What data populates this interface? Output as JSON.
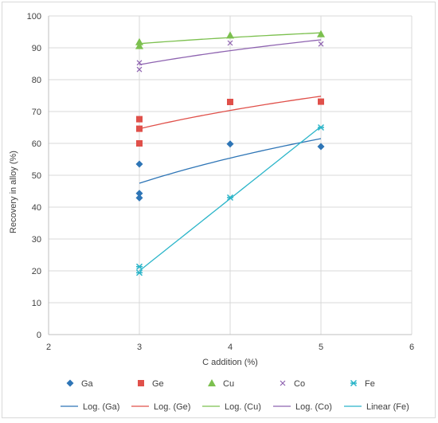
{
  "chart_data": {
    "type": "scatter",
    "xlabel": "C addition  (%)",
    "ylabel": "Recovery in alloy  (%)",
    "xlim": [
      2,
      6
    ],
    "ylim": [
      0,
      100
    ],
    "x_ticks": [
      2,
      3,
      4,
      5,
      6
    ],
    "y_ticks": [
      0,
      10,
      20,
      30,
      40,
      50,
      60,
      70,
      80,
      90,
      100
    ],
    "grid": true,
    "legend_position": "bottom",
    "series": [
      {
        "name": "Ga",
        "marker": "diamond",
        "color": "#2e75b6",
        "points": [
          [
            3,
            53.5
          ],
          [
            3,
            44.3
          ],
          [
            3,
            42.9
          ],
          [
            4,
            59.8
          ],
          [
            5,
            59.0
          ]
        ]
      },
      {
        "name": "Ge",
        "marker": "square",
        "color": "#e0504a",
        "points": [
          [
            3,
            67.6
          ],
          [
            3,
            64.6
          ],
          [
            3,
            60.0
          ],
          [
            4,
            73.0
          ],
          [
            5,
            73.1
          ]
        ]
      },
      {
        "name": "Cu",
        "marker": "triangle",
        "color": "#7cc04f",
        "points": [
          [
            3,
            91.8
          ],
          [
            3,
            90.6
          ],
          [
            4,
            93.9
          ],
          [
            5,
            94.3
          ]
        ]
      },
      {
        "name": "Co",
        "marker": "x",
        "color": "#8e63b0",
        "points": [
          [
            3,
            85.3
          ],
          [
            3,
            83.2
          ],
          [
            4,
            91.5
          ],
          [
            5,
            91.2
          ]
        ]
      },
      {
        "name": "Fe",
        "marker": "star",
        "color": "#2bb5c9",
        "points": [
          [
            3,
            21.3
          ],
          [
            3,
            19.4
          ],
          [
            4,
            43.0
          ],
          [
            5,
            65.0
          ]
        ]
      }
    ],
    "trendlines": [
      {
        "name": "Log. (Ga)",
        "kind": "log",
        "color": "#2e75b6",
        "from": [
          3,
          47.5
        ],
        "to": [
          5,
          61.5
        ]
      },
      {
        "name": "Log. (Ge)",
        "kind": "log",
        "color": "#e0504a",
        "from": [
          3,
          64.6
        ],
        "to": [
          5,
          74.8
        ]
      },
      {
        "name": "Log. (Cu)",
        "kind": "log",
        "color": "#7cc04f",
        "from": [
          3,
          91.3
        ],
        "to": [
          5,
          94.7
        ]
      },
      {
        "name": "Log. (Co)",
        "kind": "log",
        "color": "#8e63b0",
        "from": [
          3,
          84.7
        ],
        "to": [
          5,
          92.5
        ]
      },
      {
        "name": "Linear (Fe)",
        "kind": "linear",
        "color": "#2bb5c9",
        "from": [
          3,
          20.0
        ],
        "to": [
          5,
          65.3
        ]
      }
    ]
  }
}
